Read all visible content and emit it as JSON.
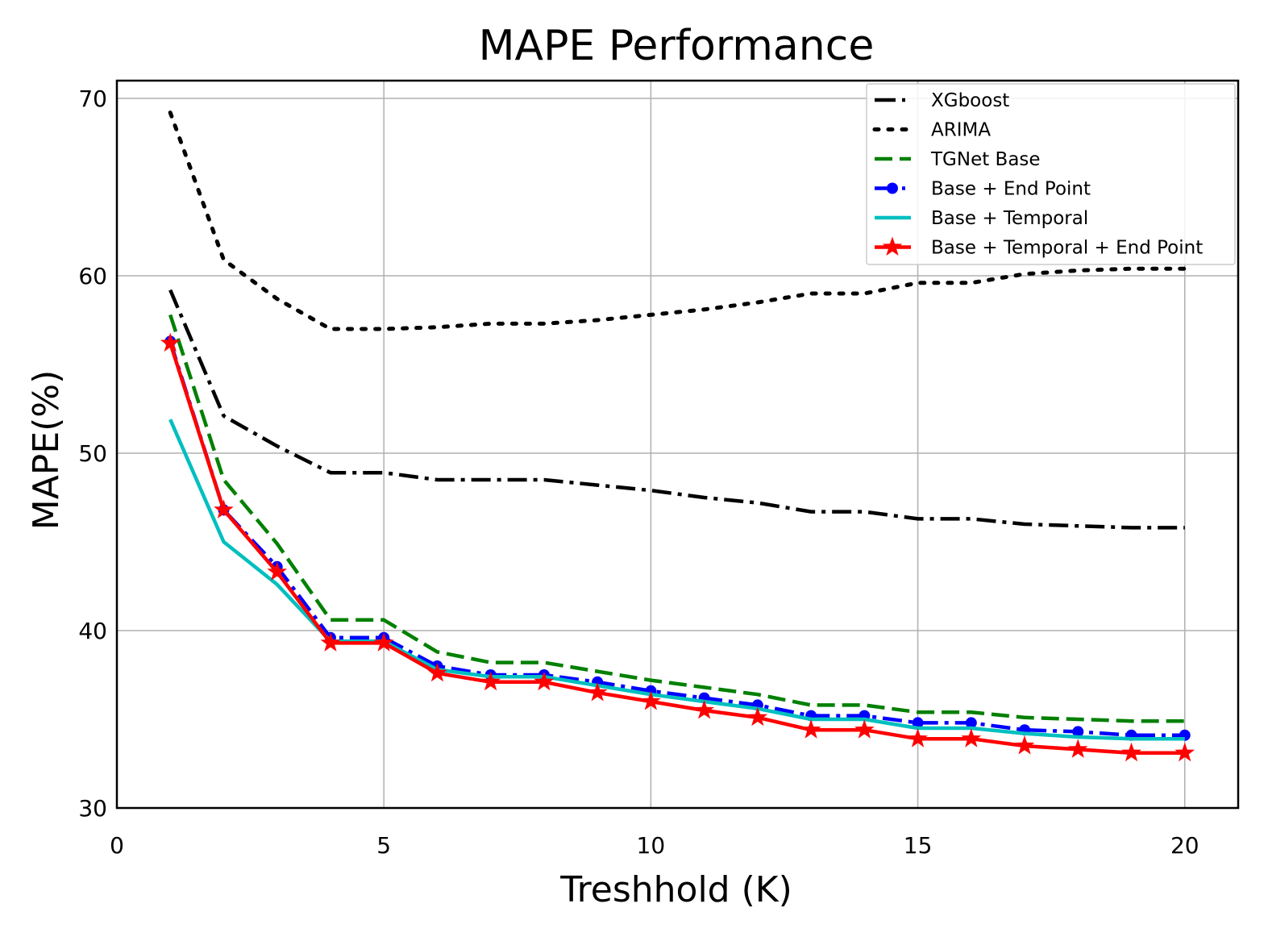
{
  "chart_data": {
    "type": "line",
    "title": "MAPE Performance",
    "xlabel": "Treshhold (K)",
    "ylabel": "MAPE(%)",
    "xlim": [
      0,
      21
    ],
    "ylim": [
      30,
      71
    ],
    "xticks": [
      0,
      5,
      10,
      15,
      20
    ],
    "yticks": [
      30,
      40,
      50,
      60,
      70
    ],
    "grid": true,
    "legend_position": "top-right",
    "x": [
      1,
      2,
      3,
      4,
      5,
      6,
      7,
      8,
      9,
      10,
      11,
      12,
      13,
      14,
      15,
      16,
      17,
      18,
      19,
      20
    ],
    "series": [
      {
        "name": "XGboost",
        "color": "#000000",
        "style": "dashdot",
        "marker": "none",
        "values": [
          59.2,
          52.1,
          50.4,
          48.9,
          48.9,
          48.5,
          48.5,
          48.5,
          48.2,
          47.9,
          47.5,
          47.2,
          46.7,
          46.7,
          46.3,
          46.3,
          46.0,
          45.9,
          45.8,
          45.8
        ]
      },
      {
        "name": "ARIMA",
        "color": "#000000",
        "style": "dotted",
        "marker": "none",
        "values": [
          69.2,
          60.9,
          58.7,
          57.0,
          57.0,
          57.1,
          57.3,
          57.3,
          57.5,
          57.8,
          58.1,
          58.5,
          59.0,
          59.0,
          59.6,
          59.6,
          60.1,
          60.3,
          60.4,
          60.4
        ]
      },
      {
        "name": "TGNet Base",
        "color": "#008000",
        "style": "dashed",
        "marker": "none",
        "values": [
          57.8,
          48.5,
          44.9,
          40.6,
          40.6,
          38.8,
          38.2,
          38.2,
          37.7,
          37.2,
          36.8,
          36.4,
          35.8,
          35.8,
          35.4,
          35.4,
          35.1,
          35.0,
          34.9,
          34.9
        ]
      },
      {
        "name": "Base + End Point",
        "color": "#0000ff",
        "style": "dashdot",
        "marker": "circle",
        "values": [
          56.3,
          46.8,
          43.6,
          39.6,
          39.6,
          38.0,
          37.5,
          37.5,
          37.1,
          36.6,
          36.2,
          35.8,
          35.2,
          35.2,
          34.8,
          34.8,
          34.4,
          34.3,
          34.1,
          34.1
        ]
      },
      {
        "name": "Base + Temporal",
        "color": "#00bfbf",
        "style": "solid",
        "marker": "none",
        "values": [
          51.9,
          45.0,
          42.6,
          39.4,
          39.4,
          37.8,
          37.4,
          37.4,
          36.9,
          36.4,
          36.0,
          35.6,
          35.0,
          35.0,
          34.5,
          34.5,
          34.2,
          34.0,
          33.9,
          33.9
        ]
      },
      {
        "name": "Base + Temporal + End Point",
        "color": "#ff0000",
        "style": "solid",
        "marker": "star",
        "values": [
          56.2,
          46.8,
          43.3,
          39.3,
          39.3,
          37.6,
          37.1,
          37.1,
          36.5,
          36.0,
          35.5,
          35.1,
          34.4,
          34.4,
          33.9,
          33.9,
          33.5,
          33.3,
          33.1,
          33.1
        ]
      }
    ]
  }
}
